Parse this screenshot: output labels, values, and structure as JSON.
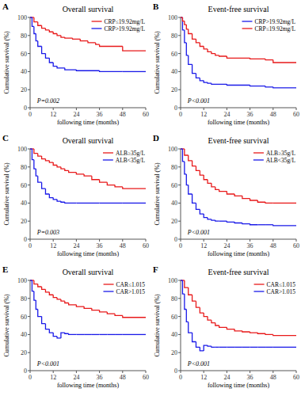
{
  "chart_data": [
    {
      "type": "step",
      "label": "A",
      "title": "Overall survival",
      "annotations": [
        "P=0.002"
      ],
      "x_label": "following time (months)",
      "y_label": "Cumulative survival (%)",
      "xlim": [
        0,
        60
      ],
      "ylim": [
        0,
        100
      ],
      "xticks": [
        0,
        12,
        24,
        36,
        48,
        60
      ],
      "yticks": [
        0,
        20,
        40,
        60,
        80,
        100
      ],
      "grid": false,
      "legend": "upper right",
      "series": [
        {
          "name": "CRP≤19.92mg/L",
          "color": "#e8191a",
          "x": [
            0,
            2,
            4,
            6,
            8,
            10,
            12,
            14,
            16,
            18,
            22,
            26,
            30,
            34,
            36,
            48,
            60
          ],
          "values": [
            100,
            95,
            91,
            88,
            86,
            84,
            82,
            80,
            78,
            77,
            76,
            74,
            72,
            70,
            68,
            63,
            63
          ]
        },
        {
          "name": "CRP>19.92mg/L",
          "color": "#1a1ae8",
          "x": [
            0,
            1,
            2,
            3,
            4,
            6,
            8,
            10,
            12,
            14,
            18,
            24,
            36,
            48,
            60
          ],
          "values": [
            100,
            90,
            82,
            74,
            68,
            60,
            55,
            50,
            46,
            44,
            42,
            41,
            40,
            40,
            40
          ]
        }
      ]
    },
    {
      "type": "step",
      "label": "B",
      "title": "Event-free survival",
      "annotations": [
        "P<0.001"
      ],
      "x_label": "following time (months)",
      "y_label": "Cumulative survival (%)",
      "xlim": [
        0,
        60
      ],
      "ylim": [
        0,
        100
      ],
      "xticks": [
        0,
        12,
        24,
        36,
        48,
        60
      ],
      "yticks": [
        0,
        20,
        40,
        60,
        80,
        100
      ],
      "grid": false,
      "legend": "upper right",
      "series": [
        {
          "name": "CRP>19.92mg/L",
          "color": "#1a1ae8",
          "x": [
            0,
            1,
            2,
            3,
            4,
            6,
            8,
            10,
            12,
            14,
            16,
            24,
            36,
            44,
            48,
            60
          ],
          "values": [
            100,
            86,
            72,
            58,
            48,
            38,
            33,
            30,
            28,
            27,
            26,
            25,
            24,
            23,
            22,
            22
          ]
        },
        {
          "name": "CRP≤19.92mg/L",
          "color": "#e8191a",
          "x": [
            0,
            1,
            2,
            3,
            4,
            6,
            8,
            10,
            12,
            14,
            16,
            18,
            20,
            24,
            36,
            44,
            48,
            60
          ],
          "values": [
            100,
            96,
            92,
            87,
            82,
            76,
            72,
            68,
            65,
            62,
            60,
            58,
            57,
            55,
            54,
            53,
            50,
            50
          ]
        }
      ]
    },
    {
      "type": "step",
      "label": "C",
      "title": "Overall survival",
      "annotations": [
        "P=0.003"
      ],
      "x_label": "following time (months)",
      "y_label": "Cumulative survival (%)",
      "xlim": [
        0,
        60
      ],
      "ylim": [
        0,
        100
      ],
      "xticks": [
        0,
        12,
        24,
        36,
        48,
        60
      ],
      "yticks": [
        0,
        20,
        40,
        60,
        80,
        100
      ],
      "grid": false,
      "legend": "upper right",
      "series": [
        {
          "name": "ALB≥35g/L",
          "color": "#e8191a",
          "x": [
            0,
            2,
            4,
            6,
            8,
            10,
            12,
            14,
            16,
            18,
            20,
            24,
            28,
            32,
            36,
            40,
            44,
            48,
            60
          ],
          "values": [
            100,
            95,
            92,
            89,
            87,
            85,
            82,
            80,
            78,
            76,
            74,
            72,
            70,
            66,
            63,
            60,
            58,
            56,
            56
          ]
        },
        {
          "name": "ALB<35g/L",
          "color": "#1a1ae8",
          "x": [
            0,
            1,
            2,
            3,
            4,
            6,
            8,
            10,
            12,
            14,
            16,
            18,
            24,
            36,
            48,
            60
          ],
          "values": [
            100,
            88,
            78,
            70,
            63,
            56,
            50,
            46,
            44,
            42,
            41,
            40,
            40,
            40,
            40,
            40
          ]
        }
      ]
    },
    {
      "type": "step",
      "label": "D",
      "title": "Event-free survival",
      "annotations": [
        "P<0.001"
      ],
      "x_label": "following time (months)",
      "y_label": "Cumulative survival (%)",
      "xlim": [
        0,
        60
      ],
      "ylim": [
        0,
        100
      ],
      "xticks": [
        0,
        12,
        24,
        36,
        48,
        60
      ],
      "yticks": [
        0,
        20,
        40,
        60,
        80,
        100
      ],
      "grid": false,
      "legend": "upper right",
      "series": [
        {
          "name": "ALB≥35g/L",
          "color": "#e8191a",
          "x": [
            0,
            2,
            4,
            6,
            8,
            10,
            12,
            14,
            16,
            18,
            20,
            24,
            28,
            32,
            36,
            40,
            44,
            48,
            60
          ],
          "values": [
            100,
            93,
            87,
            81,
            76,
            71,
            66,
            62,
            58,
            55,
            53,
            50,
            48,
            45,
            43,
            41,
            40,
            40,
            40
          ]
        },
        {
          "name": "ALB<35g/L",
          "color": "#1a1ae8",
          "x": [
            0,
            1,
            2,
            3,
            4,
            6,
            8,
            10,
            12,
            14,
            16,
            18,
            20,
            24,
            28,
            32,
            36,
            40,
            44,
            48,
            60
          ],
          "values": [
            100,
            86,
            72,
            60,
            50,
            40,
            33,
            28,
            24,
            22,
            21,
            20,
            20,
            19,
            18,
            17,
            16,
            16,
            16,
            15,
            15
          ]
        }
      ]
    },
    {
      "type": "step",
      "label": "E",
      "title": "Overall survival",
      "annotations": [
        "P<0.001"
      ],
      "x_label": "following time (months)",
      "y_label": "Cumulative survival (%)",
      "xlim": [
        0,
        60
      ],
      "ylim": [
        0,
        100
      ],
      "xticks": [
        0,
        12,
        24,
        36,
        48,
        60
      ],
      "yticks": [
        0,
        20,
        40,
        60,
        80,
        100
      ],
      "grid": false,
      "legend": "upper right",
      "series": [
        {
          "name": "CAR≤1.015",
          "color": "#e8191a",
          "x": [
            0,
            2,
            4,
            6,
            8,
            10,
            12,
            14,
            16,
            18,
            20,
            24,
            28,
            32,
            36,
            40,
            44,
            48,
            60
          ],
          "values": [
            100,
            96,
            93,
            90,
            87,
            84,
            81,
            79,
            77,
            75,
            73,
            71,
            69,
            67,
            65,
            63,
            61,
            59,
            59
          ]
        },
        {
          "name": "CAR>1.015",
          "color": "#1a1ae8",
          "x": [
            0,
            1,
            2,
            3,
            4,
            6,
            8,
            10,
            12,
            14,
            16,
            18,
            20,
            24,
            28,
            32,
            36,
            40,
            44,
            48,
            60
          ],
          "values": [
            100,
            88,
            78,
            68,
            60,
            52,
            46,
            42,
            38,
            36,
            42,
            41,
            40,
            40,
            40,
            40,
            40,
            40,
            40,
            40,
            40
          ]
        }
      ]
    },
    {
      "type": "step",
      "label": "F",
      "title": "Event-free survival",
      "annotations": [
        "P<0.001"
      ],
      "x_label": "following time (months)",
      "y_label": "Cumulative survival (%)",
      "xlim": [
        0,
        60
      ],
      "ylim": [
        0,
        100
      ],
      "xticks": [
        0,
        12,
        24,
        36,
        48,
        60
      ],
      "yticks": [
        0,
        20,
        40,
        60,
        80,
        100
      ],
      "grid": false,
      "legend": "upper right",
      "series": [
        {
          "name": "CAR≤1.015",
          "color": "#e8191a",
          "x": [
            0,
            2,
            4,
            6,
            8,
            10,
            12,
            14,
            16,
            18,
            20,
            24,
            28,
            32,
            36,
            40,
            44,
            48,
            60
          ],
          "values": [
            100,
            92,
            84,
            77,
            70,
            64,
            60,
            56,
            53,
            50,
            48,
            46,
            44,
            43,
            42,
            41,
            40,
            39,
            39
          ]
        },
        {
          "name": "CAR>1.015",
          "color": "#1a1ae8",
          "x": [
            0,
            1,
            2,
            3,
            4,
            6,
            8,
            10,
            12,
            14,
            16,
            18,
            20,
            24,
            28,
            32,
            36,
            40,
            44,
            48,
            60
          ],
          "values": [
            100,
            85,
            68,
            54,
            42,
            32,
            26,
            22,
            28,
            27,
            26,
            26,
            26,
            26,
            26,
            26,
            26,
            26,
            26,
            26,
            26
          ]
        }
      ]
    }
  ]
}
